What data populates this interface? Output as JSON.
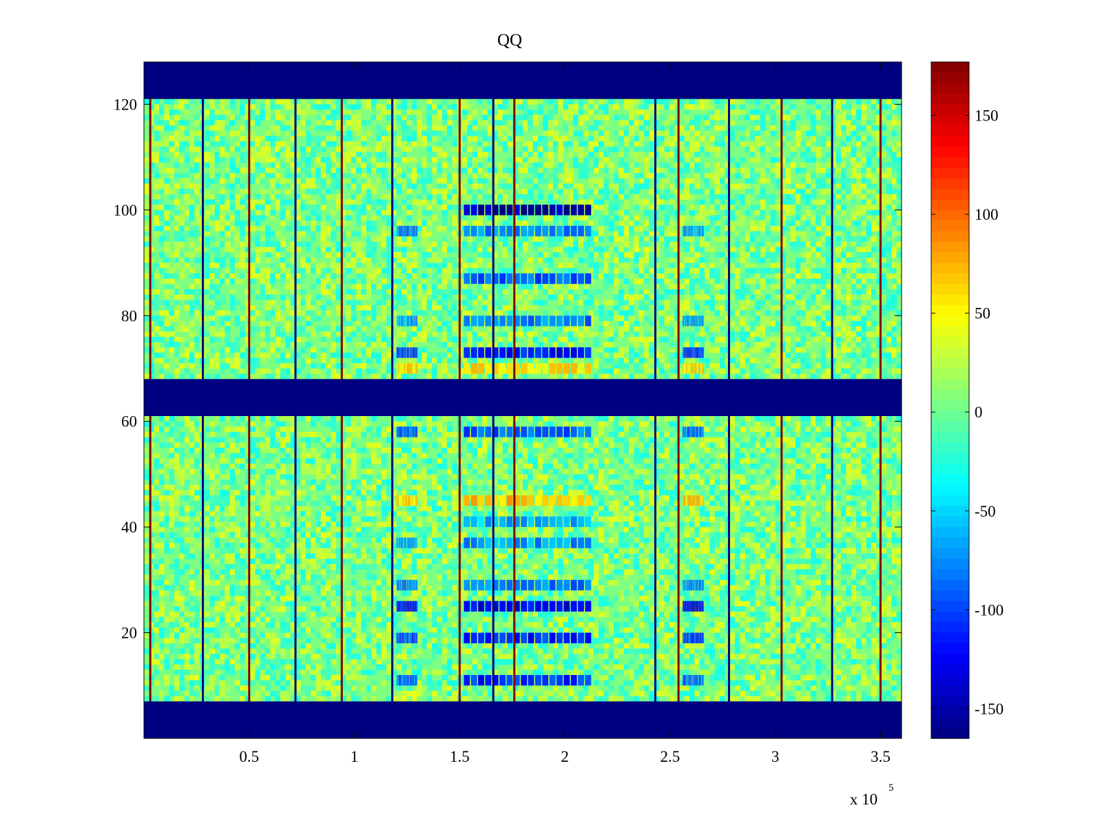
{
  "chart_data": {
    "type": "heatmap",
    "title": "QQ",
    "xlabel": "",
    "ylabel": "",
    "x_multiplier_label": {
      "base": "x 10",
      "exponent": "5"
    },
    "xlim": [
      0,
      360000
    ],
    "ylim": [
      0,
      128
    ],
    "x_ticks": [
      50000,
      100000,
      150000,
      200000,
      250000,
      300000,
      350000
    ],
    "x_tick_labels": [
      "0.5",
      "1",
      "1.5",
      "2",
      "2.5",
      "3",
      "3.5"
    ],
    "y_ticks": [
      20,
      40,
      60,
      80,
      100,
      120
    ],
    "y_tick_labels": [
      "20",
      "40",
      "60",
      "80",
      "100",
      "120"
    ],
    "colormap": "jet",
    "color_range": [
      -165,
      177
    ],
    "colorbar_ticks": [
      150,
      100,
      50,
      0,
      -50,
      -100,
      -150
    ],
    "colorbar_tick_labels": [
      "150",
      "100",
      "50",
      "0",
      "-50",
      "-100",
      "-150"
    ],
    "background_value": 5,
    "masked_row_bands": [
      {
        "y": [
          0,
          7
        ],
        "value": -165
      },
      {
        "y": [
          61,
          68
        ],
        "value": -165
      },
      {
        "y": [
          121,
          128
        ],
        "value": -165
      }
    ],
    "vertical_stripes_x": [
      3000,
      28000,
      50000,
      72000,
      94000,
      118000,
      150000,
      166000,
      176000,
      243000,
      254000,
      278000,
      303000,
      327000,
      350000
    ],
    "active_column_regions": [
      {
        "x": [
          120000,
          130000
        ],
        "rows": [
          {
            "y": 25,
            "value": -120
          },
          {
            "y": 19,
            "value": -100
          },
          {
            "y": 11,
            "value": -90
          },
          {
            "y": 58,
            "value": -90
          },
          {
            "y": 45,
            "value": 60
          },
          {
            "y": 73,
            "value": -100
          },
          {
            "y": 79,
            "value": -70
          },
          {
            "y": 96,
            "value": -80
          },
          {
            "y": 70,
            "value": 60
          },
          {
            "y": 29,
            "value": -80
          },
          {
            "y": 37,
            "value": -70
          }
        ]
      },
      {
        "x": [
          152000,
          213000
        ],
        "rows": [
          {
            "y": 25,
            "value": -130
          },
          {
            "y": 19,
            "value": -110
          },
          {
            "y": 11,
            "value": -110
          },
          {
            "y": 58,
            "value": -90
          },
          {
            "y": 45,
            "value": 70
          },
          {
            "y": 73,
            "value": -120
          },
          {
            "y": 79,
            "value": -80
          },
          {
            "y": 87,
            "value": -90
          },
          {
            "y": 96,
            "value": -80
          },
          {
            "y": 100,
            "value": -150
          },
          {
            "y": 70,
            "value": 60
          },
          {
            "y": 29,
            "value": -80
          },
          {
            "y": 37,
            "value": -70
          },
          {
            "y": 41,
            "value": -60
          }
        ]
      },
      {
        "x": [
          256000,
          266000
        ],
        "rows": [
          {
            "y": 25,
            "value": -130
          },
          {
            "y": 19,
            "value": -100
          },
          {
            "y": 11,
            "value": -90
          },
          {
            "y": 58,
            "value": -90
          },
          {
            "y": 45,
            "value": 70
          },
          {
            "y": 73,
            "value": -110
          },
          {
            "y": 79,
            "value": -70
          },
          {
            "y": 96,
            "value": -70
          },
          {
            "y": 70,
            "value": 60
          },
          {
            "y": 29,
            "value": -80
          }
        ]
      }
    ],
    "grid": false
  }
}
